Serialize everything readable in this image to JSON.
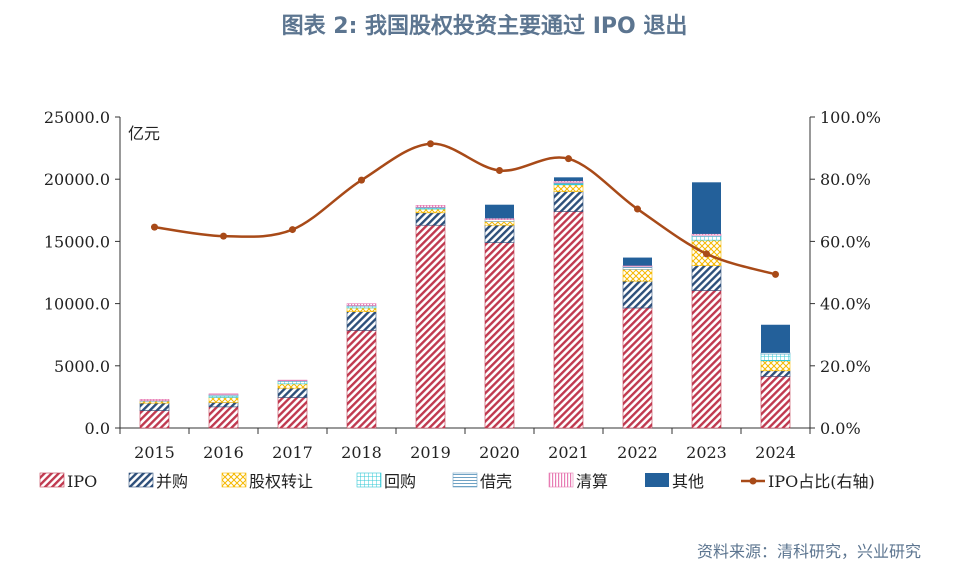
{
  "title": "图表 2: 我国股权投资主要通过 IPO 退出",
  "source": "资料来源：清科研究，兴业研究",
  "chart_data": {
    "type": "bar",
    "stacked": true,
    "ylabel": "亿元",
    "categories": [
      "2015",
      "2016",
      "2017",
      "2018",
      "2019",
      "2020",
      "2021",
      "2022",
      "2023",
      "2024"
    ],
    "y_left": {
      "ylim": [
        0,
        25000
      ],
      "ticks": [
        "0.0",
        "5000.0",
        "10000.0",
        "15000.0",
        "20000.0",
        "25000.0"
      ]
    },
    "y_right": {
      "ylim": [
        0,
        1.0
      ],
      "ticks": [
        "0.0%",
        "20.0%",
        "40.0%",
        "60.0%",
        "80.0%",
        "100.0%"
      ]
    },
    "series": [
      {
        "name": "IPO",
        "axis": "left",
        "color": "#c0394f",
        "pattern": "diag-red",
        "values": [
          1400,
          1700,
          2450,
          7850,
          16300,
          14900,
          17400,
          9650,
          11050,
          4150
        ]
      },
      {
        "name": "并购",
        "axis": "left",
        "color": "#2d4f7a",
        "pattern": "diag-navy",
        "values": [
          600,
          350,
          750,
          1500,
          1000,
          1400,
          1600,
          2150,
          2000,
          450
        ]
      },
      {
        "name": "股权转让",
        "axis": "left",
        "color": "#f5b800",
        "pattern": "cross-yellow",
        "values": [
          150,
          400,
          350,
          300,
          300,
          300,
          550,
          950,
          2050,
          800
        ]
      },
      {
        "name": "回购",
        "axis": "left",
        "color": "#32c8d6",
        "pattern": "grid-cyan",
        "values": [
          0,
          150,
          200,
          150,
          100,
          0,
          100,
          0,
          300,
          550
        ]
      },
      {
        "name": "借壳",
        "axis": "left",
        "color": "#6fa2c4",
        "pattern": "horiz-blue",
        "values": [
          50,
          100,
          50,
          50,
          50,
          150,
          100,
          250,
          100,
          100
        ]
      },
      {
        "name": "清算",
        "axis": "left",
        "color": "#e87db5",
        "pattern": "vert-pink",
        "values": [
          100,
          50,
          50,
          150,
          150,
          100,
          100,
          50,
          100,
          0
        ]
      },
      {
        "name": "其他",
        "axis": "left",
        "color": "#23609a",
        "pattern": "solid",
        "values": [
          0,
          0,
          0,
          0,
          0,
          1100,
          300,
          650,
          4150,
          2250
        ]
      },
      {
        "name": "IPO占比(右轴)",
        "axis": "right",
        "type": "line",
        "color": "#a84a18",
        "values": [
          0.646,
          0.617,
          0.638,
          0.797,
          0.914,
          0.828,
          0.866,
          0.704,
          0.56,
          0.494
        ]
      }
    ],
    "legend_position": "bottom",
    "grid": false
  }
}
